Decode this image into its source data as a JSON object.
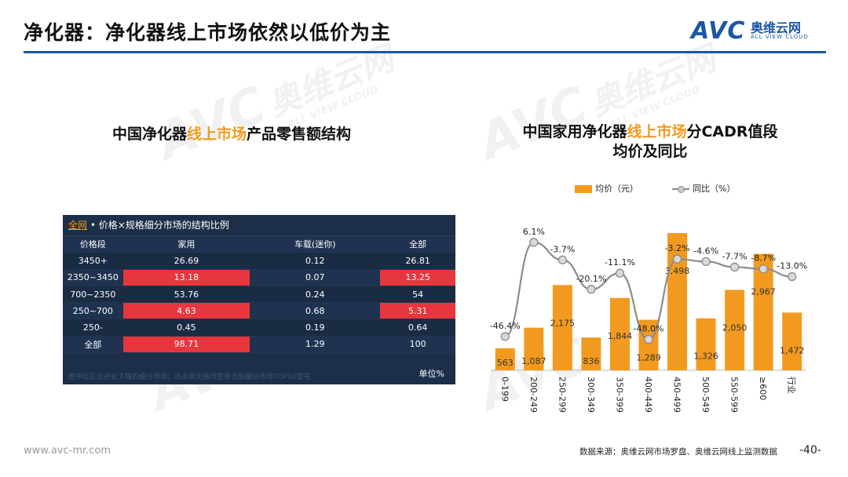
{
  "page": {
    "title": "净化器：净化器线上市场依然以低价为主",
    "logo_text": "AVC",
    "logo_cn": "奥维云网",
    "logo_en": "ALL VIEW CLOUD",
    "footer_url": "www.avc-mr.com",
    "footer_source": "数据来源：奥维云网市场罗盘、奥维云网线上监测数据",
    "page_number": "-40-",
    "brand_color": "#1b56a6",
    "accent_color": "#f29a1f"
  },
  "left_section": {
    "title_pre": "中国净化器",
    "title_hl": "线上市场",
    "title_post": "产品零售额结构",
    "panel": {
      "tab": "全网",
      "caption": " • 价格×规格细分市场的结构比例",
      "headers": [
        "价格段",
        "家用",
        "车载(迷你)",
        "全部"
      ],
      "rows": [
        {
          "seg": "3450+",
          "home": "26.69",
          "car": "0.12",
          "all": "26.81",
          "hl_home": false,
          "hl_all": false
        },
        {
          "seg": "2350~3450",
          "home": "13.18",
          "car": "0.07",
          "all": "13.25",
          "hl_home": true,
          "hl_all": true
        },
        {
          "seg": "700~2350",
          "home": "53.76",
          "car": "0.24",
          "all": "54",
          "hl_home": false,
          "hl_all": false
        },
        {
          "seg": "250~700",
          "home": "4.63",
          "car": "0.68",
          "all": "5.31",
          "hl_home": true,
          "hl_all": true
        },
        {
          "seg": "250-",
          "home": "0.45",
          "car": "0.19",
          "all": "0.64",
          "hl_home": false,
          "hl_all": false
        },
        {
          "seg": "全部",
          "home": "98.71",
          "car": "1.29",
          "all": "100",
          "hl_home": true,
          "hl_all": false
        }
      ],
      "footnote": "图中红区为开化下降的细分市场；点击单元格可查看当前细分市场TOP10型号",
      "unit": "单位%",
      "highlight_color": "#e8363e"
    }
  },
  "right_section": {
    "title_pre": "中国家用净化器",
    "title_hl": "线上市场",
    "title_post": "分CADR值段",
    "title_line2": "均价及同比",
    "legend_bar": "均价（元）",
    "legend_line": "同比（%）"
  },
  "chart_data": {
    "type": "bar",
    "title": "中国家用净化器线上市场分CADR值段均价及同比",
    "categories": [
      "0-199",
      "200-249",
      "250-299",
      "300-349",
      "350-399",
      "400-449",
      "450-499",
      "500-549",
      "550-599",
      "≥600",
      "行业"
    ],
    "series": [
      {
        "name": "均价（元）",
        "type": "bar",
        "values": [
          563,
          1087,
          2175,
          836,
          1844,
          1289,
          3498,
          1326,
          2050,
          2967,
          1472
        ],
        "labels": [
          "563",
          "1,087",
          "2,175",
          "836",
          "1,844",
          "1,289",
          "3,498",
          "1,326",
          "2,050",
          "2,967",
          "1,472"
        ],
        "color": "#f29a1f"
      },
      {
        "name": "同比（%）",
        "type": "line",
        "values": [
          -46.4,
          6.1,
          -3.7,
          -20.1,
          -11.1,
          -48.0,
          -3.2,
          -4.6,
          -7.7,
          -8.7,
          -13.0
        ],
        "labels": [
          "-46.4%",
          "6.1%",
          "-3.7%",
          "-20.1%",
          "-11.1%",
          "-48.0%",
          "-3.2%",
          "-4.6%",
          "-7.7%",
          "-8.7%",
          "-13.0%"
        ],
        "color": "#8c8c8c"
      }
    ],
    "ylim_bar": [
      0,
      3600
    ],
    "ylim_line": [
      -60,
      10
    ],
    "legend": "top-center"
  }
}
